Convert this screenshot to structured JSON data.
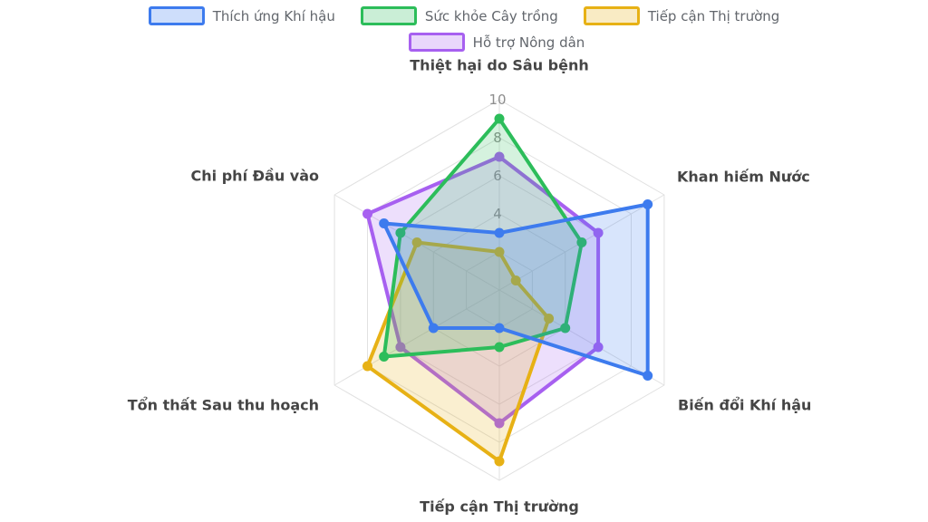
{
  "chart_data": {
    "type": "radar",
    "axes": [
      "Thiệt hại do Sâu bệnh",
      "Khan hiếm Nước",
      "Biến đổi Khí hậu",
      "Tiếp cận Thị trường",
      "Tổn thất Sau thu hoạch",
      "Chi phí Đầu vào"
    ],
    "rmin": 0,
    "rmax": 10,
    "ring_step": 2,
    "visible_ticks": [
      4,
      6,
      8,
      10
    ],
    "grid": true,
    "legend_position": "top",
    "fill_opacity": 0.2,
    "series": [
      {
        "name": "Thích ứng Khí hậu",
        "color": "#3d7bee",
        "values": [
          3,
          9,
          9,
          2,
          4,
          7
        ]
      },
      {
        "name": "Sức khỏe Cây trồng",
        "color": "#2cbd5a",
        "values": [
          9,
          5,
          4,
          3,
          7,
          6
        ]
      },
      {
        "name": "Tiếp cận Thị trường",
        "color": "#e7b115",
        "values": [
          2,
          1,
          3,
          9,
          8,
          5
        ]
      },
      {
        "name": "Hỗ trợ Nông dân",
        "color": "#a760f0",
        "values": [
          7,
          6,
          6,
          7,
          6,
          8
        ]
      }
    ]
  },
  "legend": {
    "rows": [
      [
        0,
        1,
        2
      ],
      [
        3
      ]
    ]
  },
  "colors": {
    "grid": "#e1e1e1",
    "tick_text": "#8e8e8e",
    "axis_label_text": "#454545",
    "legend_text": "#63676d",
    "background": "#ffffff"
  }
}
